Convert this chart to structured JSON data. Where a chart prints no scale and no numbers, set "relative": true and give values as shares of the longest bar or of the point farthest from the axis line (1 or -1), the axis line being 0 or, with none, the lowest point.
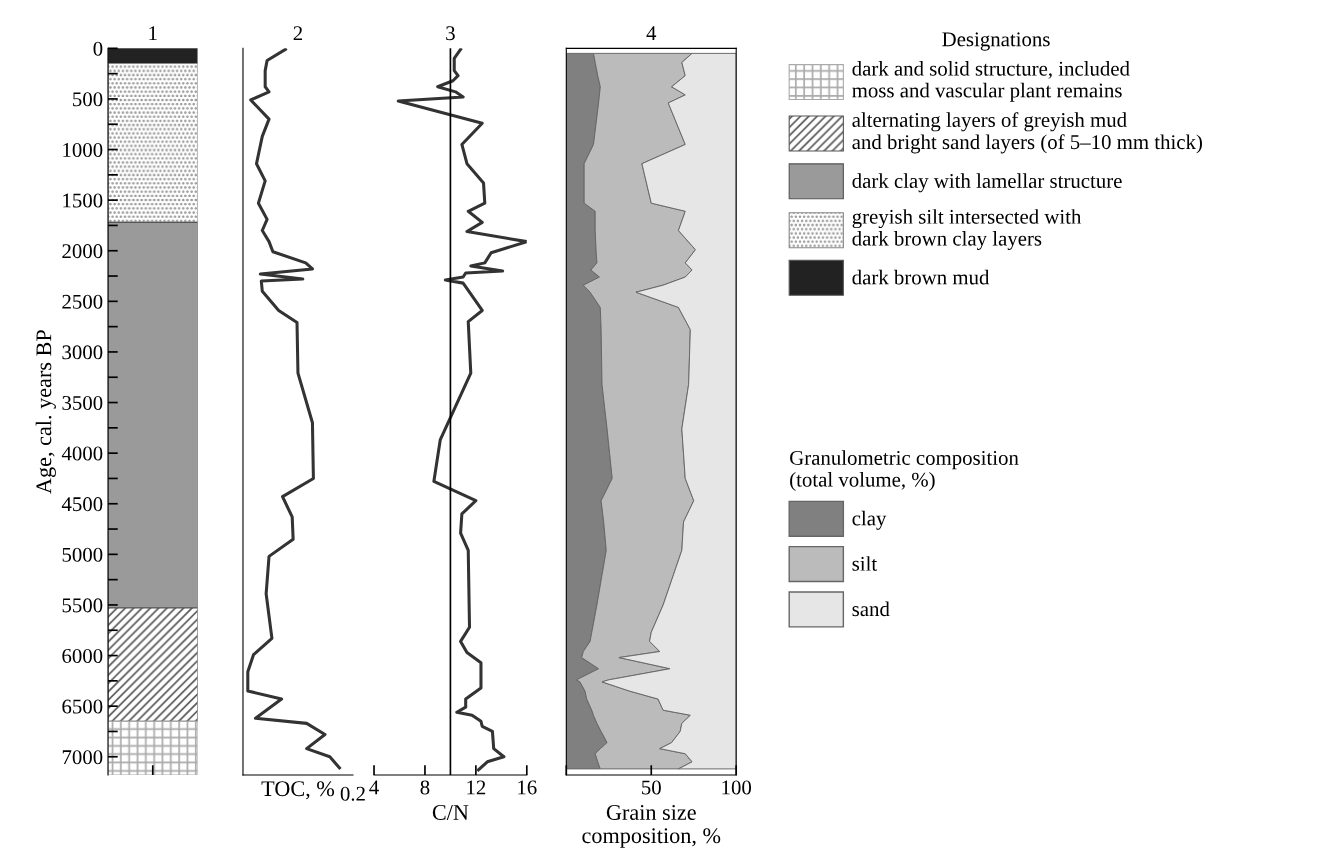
{
  "chart_data": [
    {
      "type": "bar",
      "title": "1",
      "ylabel": "Age, cal. years BP",
      "stacked": true,
      "categories": [
        null
      ],
      "ylim": [
        7180,
        0
      ],
      "yticks": [
        0,
        {
          "value": 250,
          "label": null
        },
        500,
        {
          "value": 750,
          "label": null
        },
        1000,
        {
          "value": 1250,
          "label": null
        },
        1500,
        {
          "value": 1750,
          "label": null
        },
        2000,
        {
          "value": 2250,
          "label": null
        },
        2500,
        {
          "value": 2750,
          "label": null
        },
        3000,
        {
          "value": 3250,
          "label": null
        },
        3500,
        {
          "value": 3750,
          "label": null
        },
        4000,
        {
          "value": 4250,
          "label": null
        },
        4500,
        {
          "value": 4750,
          "label": null
        },
        5000,
        {
          "value": 5250,
          "label": null
        },
        5500,
        {
          "value": 5750,
          "label": null
        },
        6000,
        {
          "value": 6250,
          "label": null
        },
        6500,
        {
          "value": 6750,
          "label": null
        },
        7000
      ],
      "tick_labels": "y",
      "legend": "right",
      "legend_title": "Designations",
      "series": [
        {
          "name": "dark brown mud",
          "color": "#222222",
          "values": [
            150
          ]
        },
        {
          "name": "greyish silt intersected with\ndark brown clay layers",
          "color": "#888888",
          "values": [
            1570
          ]
        },
        {
          "name": "dark clay with lamellar structure",
          "color": "#9a9a9a",
          "values": [
            3810
          ]
        },
        {
          "name": "alternating layers of greyish mud\nand bright sand layers (of 5–10 mm thick)",
          "color": "#555555",
          "values": [
            1120
          ]
        },
        {
          "name": "dark and solid structure, included\nmoss and vascular plant remains",
          "color": "#aaaaaa",
          "values": [
            530
          ]
        }
      ]
    },
    {
      "type": "line",
      "title": "2",
      "xlabel": "TOC, %",
      "orientation": "horizontal",
      "relative": true,
      "annotations": [
        "0.2"
      ],
      "ylim": [
        7180,
        0
      ],
      "tick_labels": "x",
      "x": [
        10,
        120,
        220,
        380,
        430,
        460,
        510,
        700,
        870,
        1140,
        1310,
        1530,
        1690,
        1800,
        1910,
        2010,
        2120,
        2180,
        2230,
        2280,
        2300,
        2400,
        2590,
        2710,
        3210,
        3700,
        4250,
        4430,
        4630,
        4850,
        5020,
        5390,
        5830,
        5990,
        6160,
        6350,
        6430,
        6620,
        6670,
        6780,
        6920,
        7000,
        7110
      ],
      "series": [
        {
          "color": "#333333",
          "values": [
            0.44,
            0.25,
            0.23,
            0.23,
            0.27,
            0.2,
            0.08,
            0.27,
            0.2,
            0.14,
            0.23,
            0.16,
            0.25,
            0.2,
            0.27,
            0.31,
            0.65,
            0.72,
            0.18,
            0.62,
            0.19,
            0.2,
            0.37,
            0.56,
            0.57,
            0.72,
            0.73,
            0.41,
            0.51,
            0.52,
            0.27,
            0.24,
            0.3,
            0.11,
            0.05,
            0.05,
            0.4,
            0.13,
            0.66,
            0.85,
            0.66,
            0.9,
            1
          ]
        }
      ]
    },
    {
      "type": "line",
      "title": "3",
      "xlabel": "C/N",
      "orientation": "horizontal",
      "xlim": [
        4,
        16
      ],
      "xticks": [
        4,
        8,
        12,
        16
      ],
      "ylim": [
        7180,
        0
      ],
      "tick_labels": "x",
      "ref_lines": [
        {
          "axis": "x",
          "value": 10,
          "color": "#000000"
        }
      ],
      "x": [
        10,
        100,
        220,
        270,
        320,
        380,
        430,
        480,
        520,
        740,
        950,
        1140,
        1330,
        1530,
        1610,
        1720,
        1810,
        1910,
        2020,
        2120,
        2150,
        2200,
        2220,
        2260,
        2290,
        2320,
        2590,
        2700,
        3210,
        3650,
        3870,
        4280,
        4470,
        4600,
        4790,
        4960,
        5720,
        5860,
        5970,
        6070,
        6320,
        6430,
        6510,
        6560,
        6590,
        6650,
        6700,
        6750,
        6920,
        7000,
        7050,
        7130
      ],
      "series": [
        {
          "color": "#333333",
          "values": [
            10.8,
            10.3,
            10.3,
            10.6,
            10.2,
            9.0,
            10.4,
            11.0,
            5.9,
            12.5,
            10.9,
            11.3,
            12.6,
            12.7,
            11.4,
            12.5,
            11.3,
            16.0,
            13.2,
            12.7,
            11.6,
            14.1,
            11.2,
            11.0,
            9.6,
            11.0,
            12.5,
            11.4,
            11.6,
            10.0,
            9.2,
            8.7,
            12.0,
            10.9,
            10.8,
            11.4,
            11.5,
            10.8,
            11.3,
            12.4,
            12.4,
            11.2,
            11.2,
            10.5,
            11.7,
            12.4,
            12.5,
            13.3,
            13.4,
            14.2,
            12.9,
            12.2
          ]
        }
      ]
    },
    {
      "type": "area",
      "title": "4",
      "xlabel": "Grain size\ncomposition, %",
      "orientation": "horizontal",
      "stacked": true,
      "xlim": [
        0,
        100
      ],
      "xticks": [
        {
          "value": 0,
          "label": null
        },
        50,
        100
      ],
      "ylim": [
        7180,
        0
      ],
      "tick_labels": "x",
      "legend": "right",
      "legend_title": "Granulometric composition\n(total volume, %)",
      "x": [
        50,
        140,
        270,
        380,
        460,
        540,
        950,
        1140,
        1530,
        1610,
        1800,
        1990,
        2120,
        2190,
        2260,
        2340,
        2410,
        2560,
        2780,
        3320,
        3760,
        4250,
        4470,
        4680,
        4960,
        5500,
        5770,
        5860,
        5960,
        6020,
        6130,
        6240,
        6260,
        6350,
        6430,
        6540,
        6590,
        6670,
        6750,
        6860,
        6920,
        6970,
        7050,
        7120
      ],
      "series": [
        {
          "name": "clay",
          "color": "#808080",
          "values": [
            16,
            17,
            18.5,
            20,
            19.5,
            19,
            16,
            10.5,
            10.5,
            17,
            17,
            17.5,
            18,
            14.5,
            19.5,
            10,
            14,
            20,
            20.5,
            21,
            24,
            27,
            20.5,
            22,
            23.5,
            18,
            15,
            14,
            10,
            9,
            19,
            6,
            8,
            11,
            12,
            15,
            16,
            18,
            20.5,
            24,
            20,
            17,
            18.5,
            20
          ]
        },
        {
          "name": "silt",
          "color": "#bbbbbb",
          "values": [
            58,
            51,
            51.5,
            42,
            50.5,
            41,
            54,
            34,
            39.5,
            53,
            49,
            58.5,
            52,
            59.5,
            50.5,
            47,
            27,
            46,
            52.5,
            51,
            44,
            43,
            54.5,
            47,
            44.5,
            39,
            35,
            35,
            45,
            22,
            42,
            19,
            13,
            26,
            42,
            42,
            57,
            50,
            46.5,
            38,
            35,
            53,
            55.5,
            46
          ]
        },
        {
          "name": "sand",
          "color": "#e6e6e6",
          "values": [
            26,
            32,
            30,
            38,
            30,
            40,
            30,
            55.5,
            50,
            30,
            34,
            24,
            30,
            26,
            30,
            43,
            59,
            34,
            27,
            28,
            32,
            30,
            25,
            31,
            32,
            43,
            50,
            51,
            45,
            69,
            39,
            75,
            79,
            63,
            46,
            43,
            27,
            32,
            33,
            38,
            45,
            30,
            26,
            34
          ]
        }
      ]
    }
  ]
}
